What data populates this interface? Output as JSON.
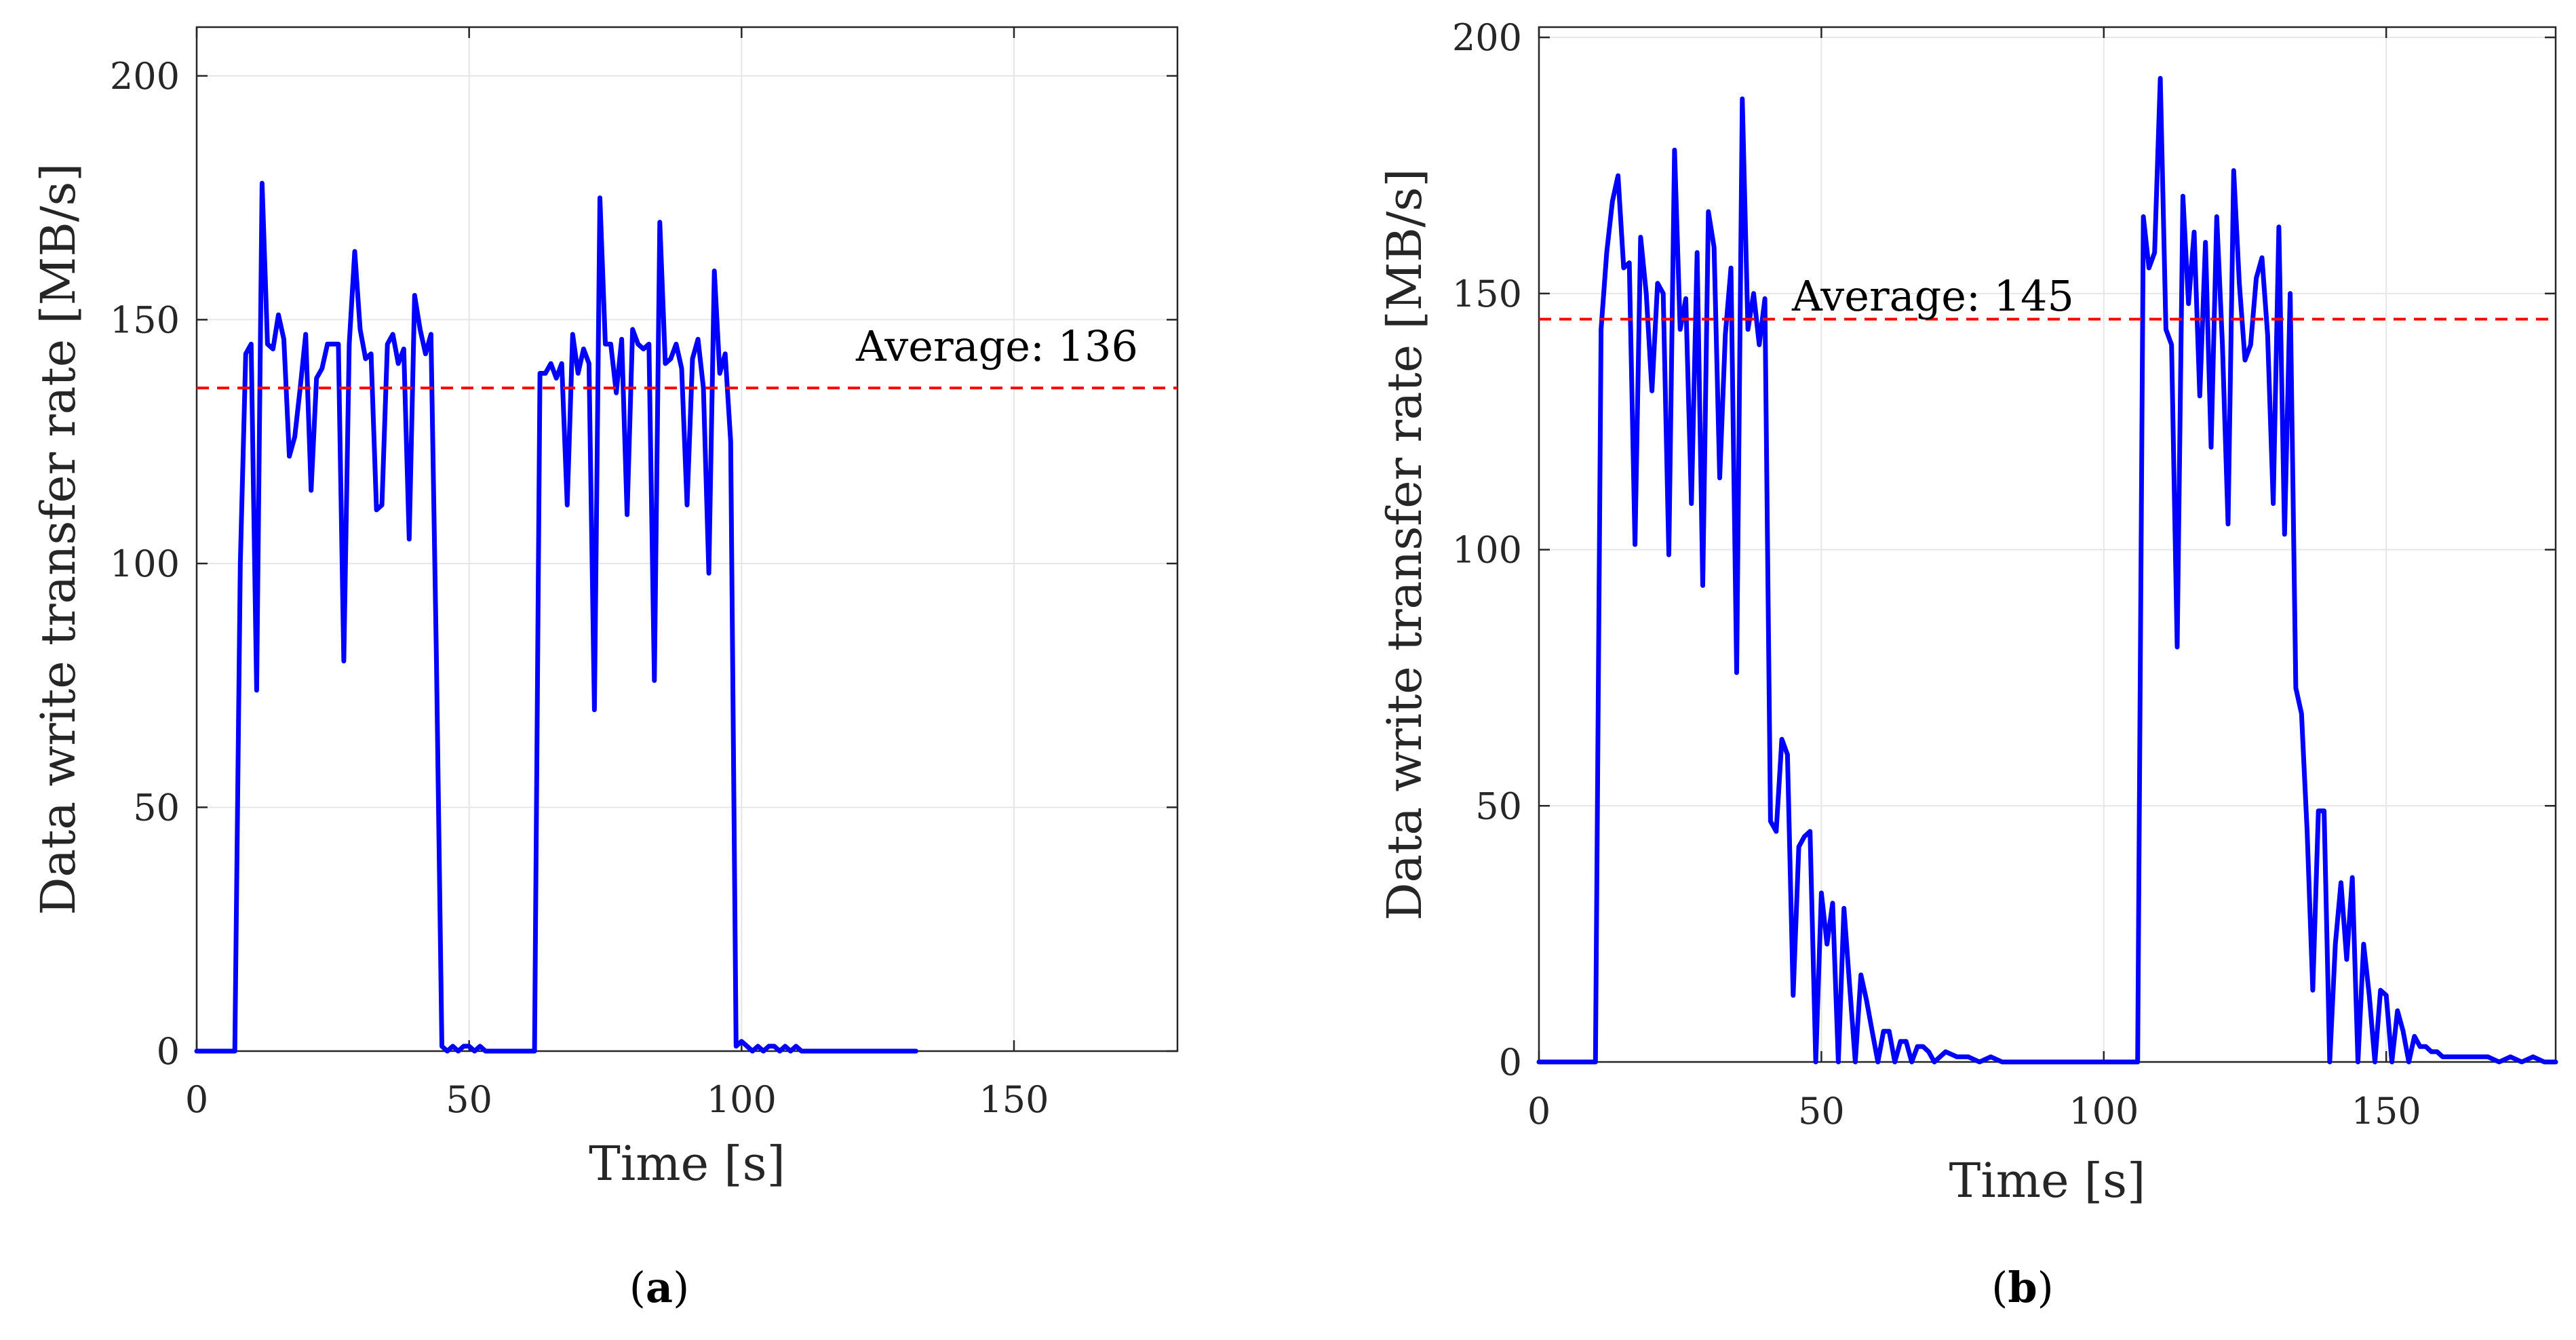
{
  "colors": {
    "line": "#0000ff",
    "average": "#ff0000",
    "grid": "#e6e6e6",
    "axis": "#262626"
  },
  "chart_data": [
    {
      "type": "line",
      "panel_label": {
        "open": "(",
        "letter": "a",
        "close": ")"
      },
      "xlabel": "Time [s]",
      "ylabel": "Data write transfer rate [MB/s]",
      "xlim": [
        0,
        180
      ],
      "ylim": [
        0,
        210
      ],
      "xticks": [
        0,
        50,
        100,
        150
      ],
      "yticks": [
        0,
        50,
        100,
        150,
        200
      ],
      "grid": true,
      "average": {
        "value": 136,
        "label": "Average: 136"
      },
      "series": [
        {
          "name": "transfer rate",
          "x": [
            0,
            6,
            7,
            8,
            9,
            10,
            11,
            12,
            13,
            14,
            15,
            16,
            17,
            18,
            19,
            20,
            21,
            22,
            23,
            24,
            25,
            26,
            27,
            28,
            29,
            30,
            31,
            32,
            33,
            34,
            35,
            36,
            37,
            38,
            39,
            40,
            41,
            42,
            43,
            44,
            45,
            46,
            47,
            48,
            49,
            50,
            51,
            52,
            53,
            54,
            55,
            56,
            57,
            58,
            59,
            60,
            61,
            62,
            63,
            64,
            65,
            66,
            67,
            68,
            69,
            70,
            71,
            72,
            73,
            74,
            75,
            76,
            77,
            78,
            79,
            80,
            81,
            82,
            83,
            84,
            85,
            86,
            87,
            88,
            89,
            90,
            91,
            92,
            93,
            94,
            95,
            96,
            97,
            98,
            99,
            100,
            101,
            102,
            103,
            104,
            105,
            106,
            107,
            108,
            109,
            110,
            111,
            112,
            113,
            114,
            115,
            116,
            118,
            120,
            125,
            130,
            132
          ],
          "values": [
            0,
            0,
            0,
            100,
            143,
            145,
            74,
            178,
            145,
            144,
            151,
            146,
            122,
            126,
            136,
            147,
            115,
            138,
            140,
            145,
            145,
            145,
            80,
            145,
            164,
            148,
            142,
            143,
            111,
            112,
            145,
            147,
            141,
            144,
            105,
            155,
            148,
            143,
            147,
            80,
            1,
            0,
            1,
            0,
            1,
            1,
            0,
            1,
            0,
            0,
            0,
            0,
            0,
            0,
            0,
            0,
            0,
            0,
            139,
            139,
            141,
            138,
            141,
            112,
            147,
            139,
            144,
            141,
            70,
            175,
            145,
            145,
            135,
            146,
            110,
            148,
            145,
            144,
            145,
            76,
            170,
            141,
            142,
            145,
            140,
            112,
            142,
            146,
            136,
            98,
            160,
            139,
            143,
            125,
            1,
            2,
            1,
            0,
            1,
            0,
            1,
            1,
            0,
            1,
            0,
            1,
            0,
            0,
            0,
            0,
            0,
            0,
            0,
            0,
            0,
            0,
            0
          ]
        }
      ]
    },
    {
      "type": "line",
      "panel_label": {
        "open": "(",
        "letter": "b",
        "close": ")"
      },
      "xlabel": "Time [s]",
      "ylabel": "Data write transfer rate [MB/s]",
      "xlim": [
        0,
        180
      ],
      "ylim": [
        0,
        202
      ],
      "xticks": [
        0,
        50,
        100,
        150
      ],
      "yticks": [
        0,
        50,
        100,
        150,
        200
      ],
      "grid": true,
      "average": {
        "value": 145,
        "label": "Average: 145"
      },
      "series": [
        {
          "name": "transfer rate",
          "x": [
            0,
            9,
            10,
            11,
            12,
            13,
            14,
            15,
            16,
            17,
            18,
            19,
            20,
            21,
            22,
            23,
            24,
            25,
            26,
            27,
            28,
            29,
            30,
            31,
            32,
            33,
            34,
            35,
            36,
            37,
            38,
            39,
            40,
            41,
            42,
            43,
            44,
            45,
            46,
            47,
            48,
            49,
            50,
            51,
            52,
            53,
            54,
            55,
            56,
            57,
            58,
            59,
            60,
            61,
            62,
            63,
            64,
            65,
            66,
            67,
            68,
            69,
            70,
            72,
            74,
            76,
            78,
            80,
            82,
            84,
            100,
            102,
            103,
            104,
            105,
            106,
            107,
            108,
            109,
            110,
            111,
            112,
            113,
            114,
            115,
            116,
            117,
            118,
            119,
            120,
            121,
            122,
            123,
            124,
            125,
            126,
            127,
            128,
            129,
            130,
            131,
            132,
            133,
            134,
            135,
            136,
            137,
            138,
            139,
            140,
            141,
            142,
            143,
            144,
            145,
            146,
            147,
            148,
            149,
            150,
            151,
            152,
            153,
            154,
            155,
            156,
            157,
            158,
            159,
            160,
            162,
            164,
            166,
            168,
            170,
            172,
            174,
            176,
            178,
            180
          ],
          "values": [
            0,
            0,
            0,
            143,
            158,
            168,
            173,
            155,
            156,
            101,
            161,
            150,
            131,
            152,
            150,
            99,
            178,
            143,
            149,
            109,
            158,
            93,
            166,
            159,
            114,
            142,
            155,
            76,
            188,
            143,
            150,
            140,
            149,
            47,
            45,
            63,
            60,
            13,
            42,
            44,
            45,
            0,
            33,
            23,
            31,
            0,
            30,
            15,
            0,
            17,
            12,
            6,
            0,
            6,
            6,
            0,
            4,
            4,
            0,
            3,
            3,
            2,
            0,
            2,
            1,
            1,
            0,
            1,
            0,
            0,
            0,
            0,
            0,
            0,
            0,
            0,
            165,
            155,
            158,
            192,
            143,
            140,
            81,
            169,
            148,
            162,
            130,
            160,
            120,
            165,
            140,
            105,
            174,
            152,
            137,
            140,
            153,
            157,
            142,
            109,
            163,
            103,
            150,
            73,
            68,
            45,
            14,
            49,
            49,
            0,
            23,
            35,
            20,
            36,
            0,
            23,
            13,
            0,
            14,
            13,
            0,
            10,
            6,
            0,
            5,
            3,
            3,
            2,
            2,
            1,
            1,
            1,
            1,
            1,
            0,
            1,
            0,
            1,
            0,
            0
          ]
        }
      ]
    }
  ]
}
